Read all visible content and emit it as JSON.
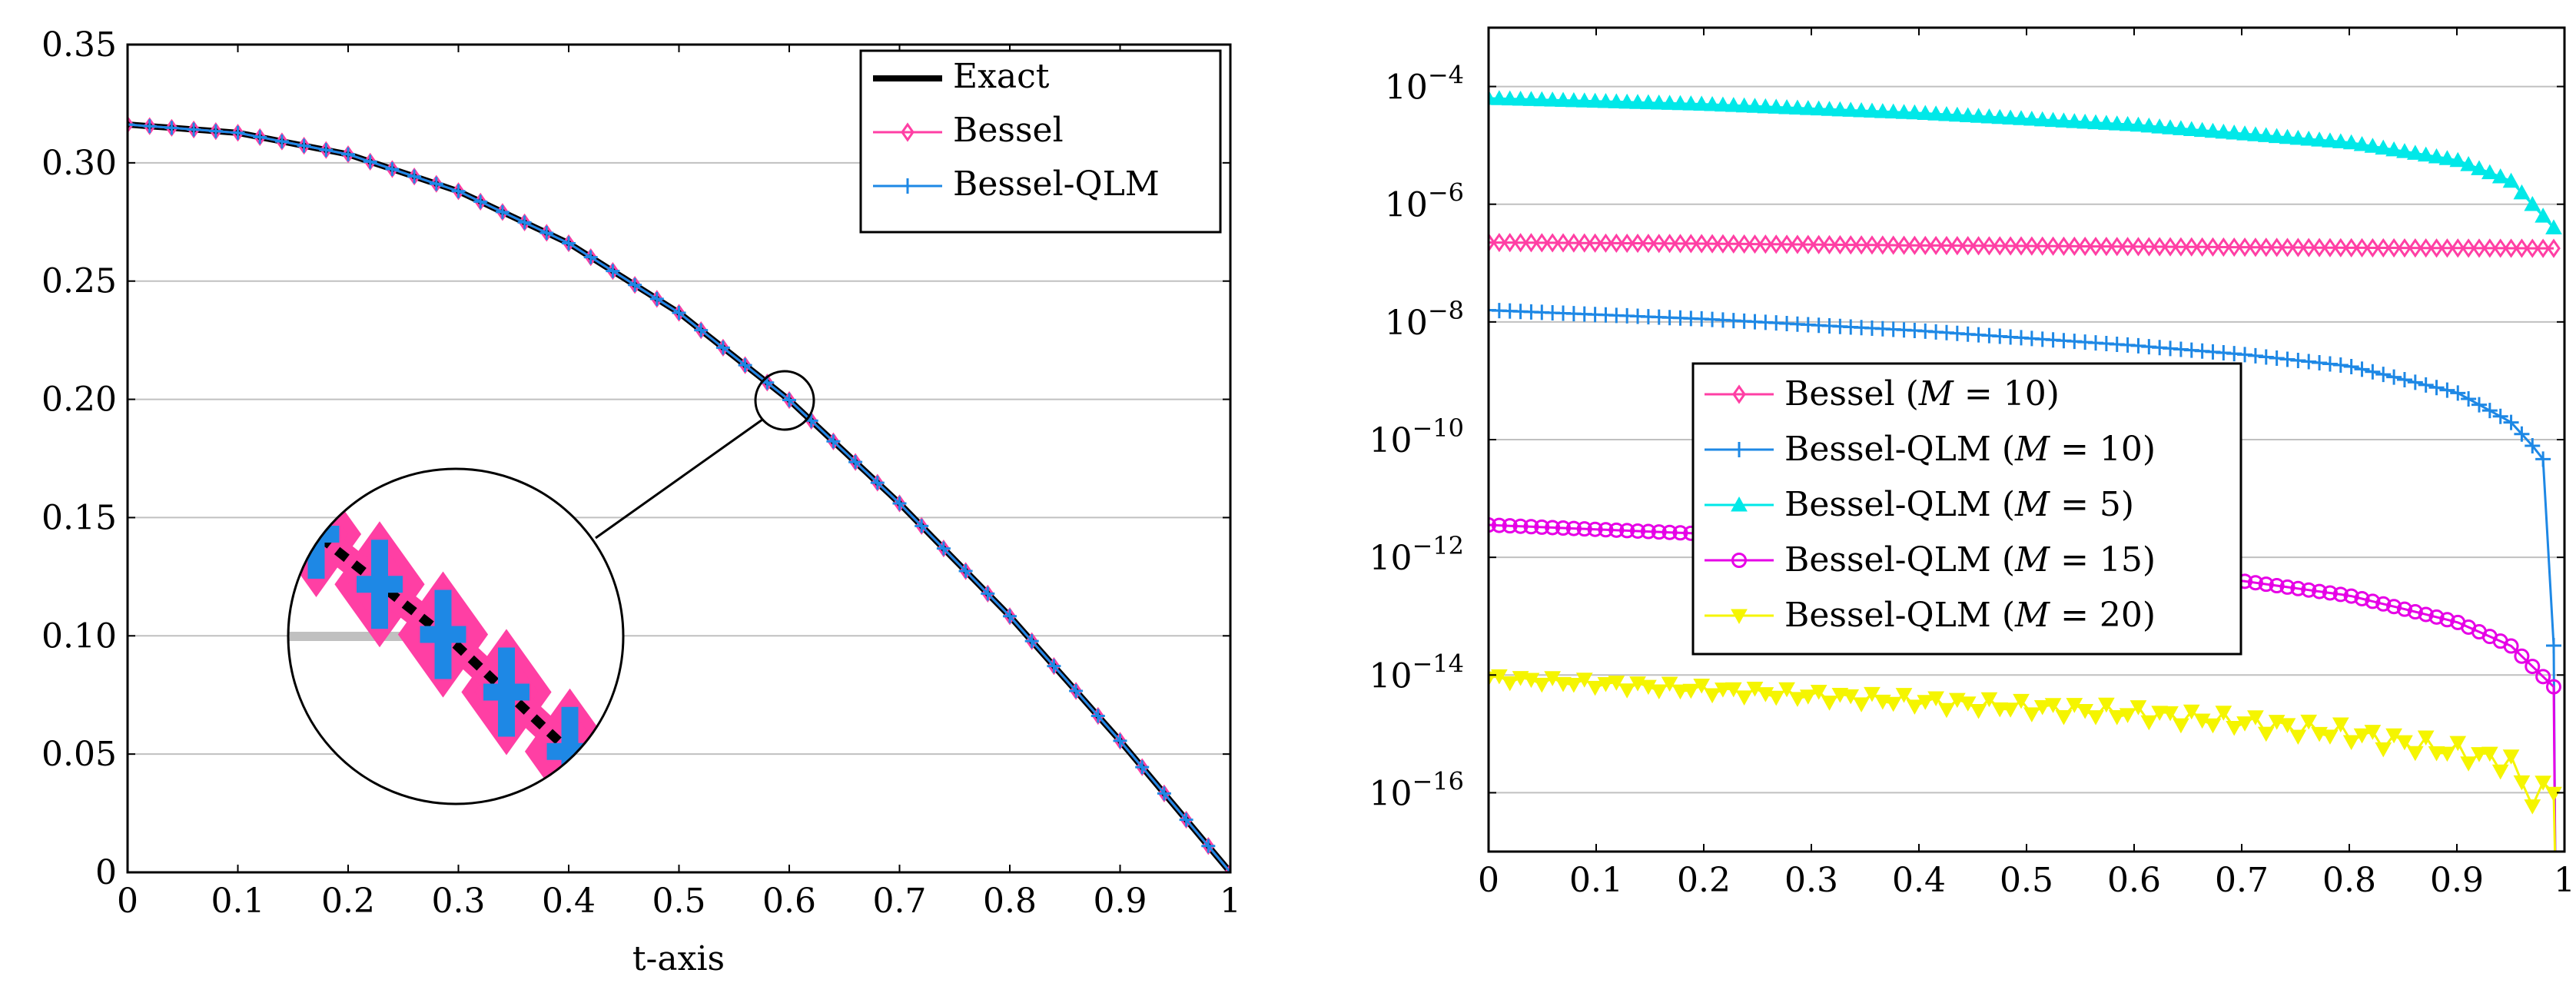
{
  "chart_data": [
    {
      "type": "line",
      "title": "",
      "xlabel": "t-axis",
      "ylabel": "",
      "xlim": [
        0,
        1
      ],
      "ylim": [
        0,
        0.35
      ],
      "x_ticks": [
        "0",
        "0.1",
        "0.2",
        "0.3",
        "0.4",
        "0.5",
        "0.6",
        "0.7",
        "0.8",
        "0.9",
        "1"
      ],
      "y_ticks": [
        "0",
        "0.05",
        "0.10",
        "0.15",
        "0.20",
        "0.25",
        "0.30",
        "0.35"
      ],
      "grid": "horizontal",
      "legend_position": "top-right",
      "series": [
        {
          "name": "Exact",
          "color": "#000000",
          "marker": "none",
          "x": [
            0,
            0.1,
            0.2,
            0.3,
            0.4,
            0.5,
            0.6,
            0.7,
            0.8,
            0.9,
            1.0
          ],
          "values": [
            0.3162,
            0.3127,
            0.3036,
            0.288,
            0.266,
            0.2366,
            0.1997,
            0.156,
            0.1083,
            0.0556,
            0.0
          ]
        },
        {
          "name": "Bessel",
          "color": "#ff3fa4",
          "marker": "diamond",
          "x": [
            0,
            0.1,
            0.2,
            0.3,
            0.4,
            0.5,
            0.6,
            0.7,
            0.8,
            0.9,
            1.0
          ],
          "values": [
            0.3162,
            0.3127,
            0.3036,
            0.288,
            0.266,
            0.2366,
            0.1997,
            0.156,
            0.1083,
            0.0556,
            0.0
          ]
        },
        {
          "name": "Bessel-QLM",
          "color": "#1e88e5",
          "marker": "plus",
          "x": [
            0,
            0.1,
            0.2,
            0.3,
            0.4,
            0.5,
            0.6,
            0.7,
            0.8,
            0.9,
            1.0
          ],
          "values": [
            0.3162,
            0.3127,
            0.3036,
            0.288,
            0.266,
            0.2366,
            0.1997,
            0.156,
            0.1083,
            0.0556,
            0.0
          ]
        }
      ],
      "inset": {
        "center": [
          0.6,
          0.2
        ],
        "description_none": ""
      }
    },
    {
      "type": "line",
      "title": "",
      "xlabel": "",
      "ylabel": "",
      "xlim": [
        0,
        1
      ],
      "y_scale": "log",
      "ylim": [
        1e-17,
        0.001
      ],
      "x_ticks": [
        "0",
        "0.1",
        "0.2",
        "0.3",
        "0.4",
        "0.5",
        "0.6",
        "0.7",
        "0.8",
        "0.9",
        "1"
      ],
      "y_ticks": [
        {
          "base": "10",
          "exp": "−4",
          "value": -4
        },
        {
          "base": "10",
          "exp": "−6",
          "value": -6
        },
        {
          "base": "10",
          "exp": "−8",
          "value": -8
        },
        {
          "base": "10",
          "exp": "−10",
          "value": -10
        },
        {
          "base": "10",
          "exp": "−12",
          "value": -12
        },
        {
          "base": "10",
          "exp": "−14",
          "value": -14
        },
        {
          "base": "10",
          "exp": "−16",
          "value": -16
        }
      ],
      "grid": "horizontal",
      "legend_position": "center-left",
      "series": [
        {
          "name": "Bessel (M = 10)",
          "label_main": "Bessel",
          "label_M": "10",
          "color": "#ff3fa4",
          "marker": "diamond",
          "x": [
            0,
            0.2,
            0.4,
            0.6,
            0.8,
            0.99
          ],
          "log10_values": [
            -6.65,
            -6.67,
            -6.7,
            -6.72,
            -6.74,
            -6.75
          ]
        },
        {
          "name": "Bessel-QLM (M = 10)",
          "label_main": "Bessel-QLM",
          "label_M": "10",
          "color": "#1e88e5",
          "marker": "plus",
          "x": [
            0,
            0.2,
            0.4,
            0.6,
            0.7,
            0.8,
            0.9,
            0.95,
            0.98,
            0.99
          ],
          "log10_values": [
            -7.8,
            -7.95,
            -8.15,
            -8.4,
            -8.55,
            -8.75,
            -9.2,
            -9.7,
            -10.3,
            -13.5
          ]
        },
        {
          "name": "Bessel-QLM (M = 5)",
          "label_main": "Bessel-QLM",
          "label_M": "5",
          "color": "#00e8e8",
          "marker": "triangle",
          "x": [
            0,
            0.2,
            0.4,
            0.6,
            0.7,
            0.8,
            0.9,
            0.95,
            0.99
          ],
          "log10_values": [
            -4.2,
            -4.3,
            -4.45,
            -4.65,
            -4.8,
            -4.95,
            -5.25,
            -5.6,
            -6.4
          ]
        },
        {
          "name": "Bessel-QLM (M = 15)",
          "label_main": "Bessel-QLM",
          "label_M": "15",
          "color": "#e600e6",
          "marker": "circle",
          "x": [
            0,
            0.2,
            0.4,
            0.6,
            0.7,
            0.8,
            0.9,
            0.95,
            0.99
          ],
          "log10_values": [
            -11.45,
            -11.6,
            -11.85,
            -12.2,
            -12.4,
            -12.65,
            -13.1,
            -13.5,
            -14.2
          ]
        },
        {
          "name": "Bessel-QLM (M = 20)",
          "label_main": "Bessel-QLM",
          "label_M": "20",
          "color": "#f5f500",
          "marker": "triangle-down",
          "x": [
            0,
            0.2,
            0.4,
            0.6,
            0.7,
            0.8,
            0.9,
            0.95,
            0.97,
            0.99
          ],
          "log10_values": [
            -14.05,
            -14.25,
            -14.45,
            -14.65,
            -14.8,
            -15.0,
            -15.3,
            -15.5,
            -16.1,
            -15.9
          ]
        }
      ]
    }
  ]
}
